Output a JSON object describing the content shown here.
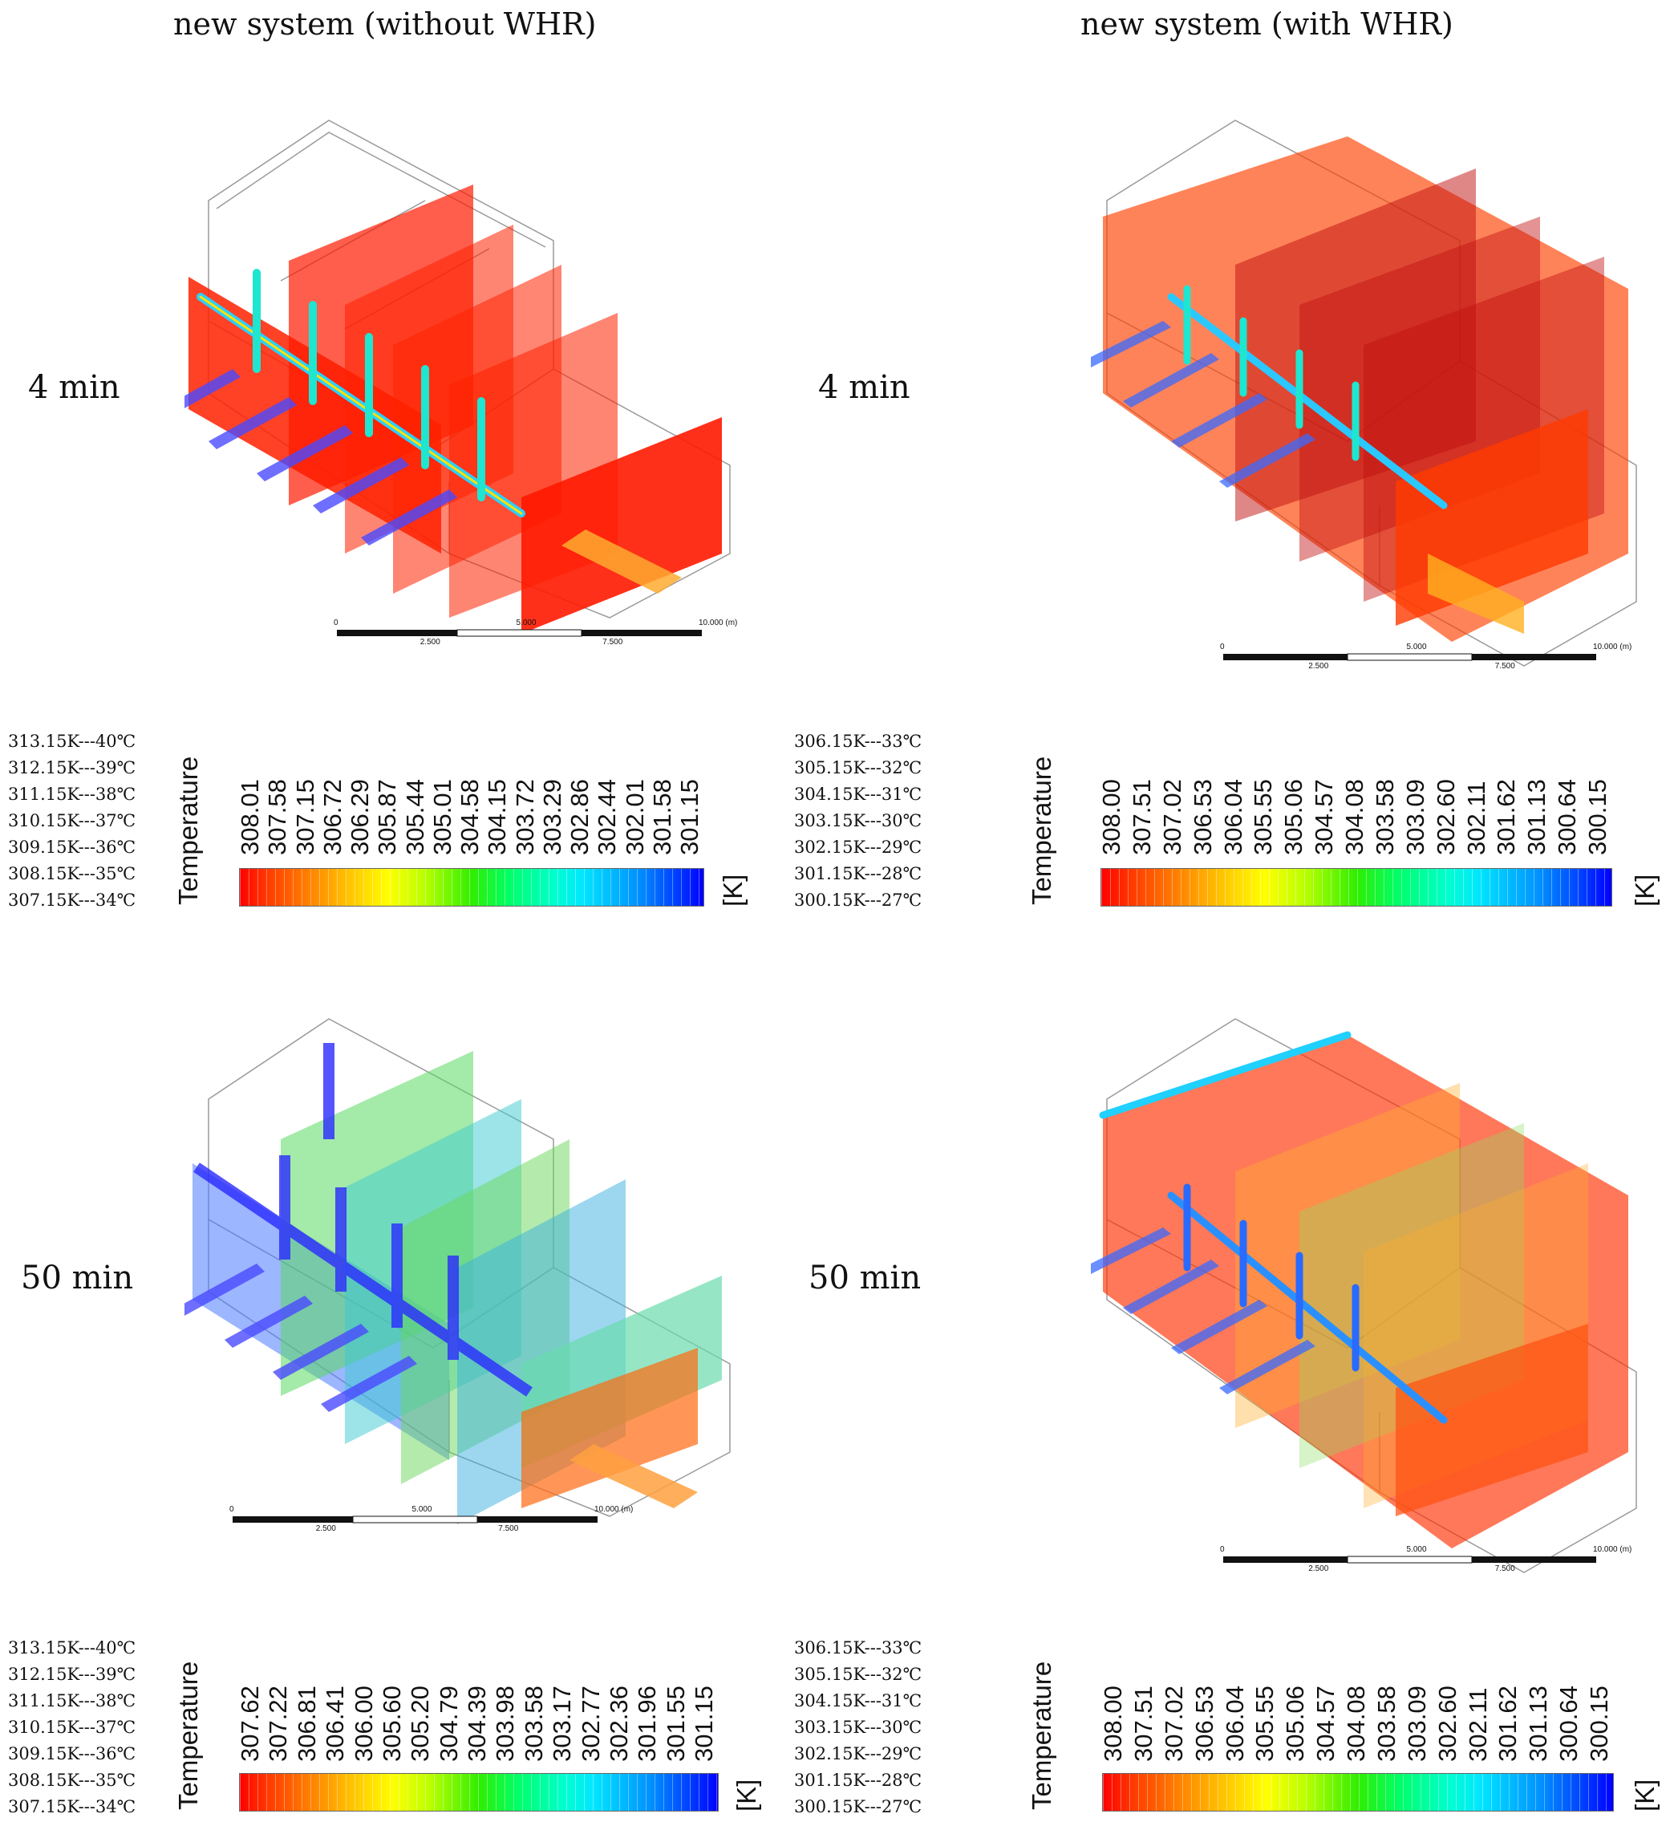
{
  "headers": {
    "left": "new system (without WHR)",
    "right": "new system (with WHR)"
  },
  "rows": [
    {
      "left_time": "4 min",
      "right_time": "4 min"
    },
    {
      "left_time": "50 min",
      "right_time": "50 min"
    }
  ],
  "scale_bar": {
    "top": [
      "0",
      "5.000",
      "10.000 (m)"
    ],
    "bottom": [
      "2.500",
      "7.500"
    ]
  },
  "conversions": {
    "left": [
      "313.15K---40℃",
      "312.15K---39℃",
      "311.15K---38℃",
      "310.15K---37℃",
      "309.15K---36℃",
      "308.15K---35℃",
      "307.15K---34℃"
    ],
    "right": [
      "306.15K---33℃",
      "305.15K---32℃",
      "304.15K---31℃",
      "303.15K---30℃",
      "302.15K---29℃",
      "301.15K---28℃",
      "300.15K---27℃"
    ]
  },
  "legends": {
    "title": "Temperature",
    "unit": "[K]",
    "left_4min": [
      "308.01",
      "307.58",
      "307.15",
      "306.72",
      "306.29",
      "305.87",
      "305.44",
      "305.01",
      "304.58",
      "304.15",
      "303.72",
      "303.29",
      "302.86",
      "302.44",
      "302.01",
      "301.58",
      "301.15"
    ],
    "right_4min": [
      "308.00",
      "307.51",
      "307.02",
      "306.53",
      "306.04",
      "305.55",
      "305.06",
      "304.57",
      "304.08",
      "303.58",
      "303.09",
      "302.60",
      "302.11",
      "301.62",
      "301.13",
      "300.64",
      "300.15"
    ],
    "left_50min": [
      "307.62",
      "307.22",
      "306.81",
      "306.41",
      "306.00",
      "305.60",
      "305.20",
      "304.79",
      "304.39",
      "303.98",
      "303.58",
      "303.17",
      "302.77",
      "302.36",
      "301.96",
      "301.55",
      "301.15"
    ],
    "right_50min": [
      "308.00",
      "307.51",
      "307.02",
      "306.53",
      "306.04",
      "305.55",
      "305.06",
      "304.57",
      "304.08",
      "303.58",
      "303.09",
      "302.60",
      "302.11",
      "301.62",
      "301.13",
      "300.64",
      "300.15"
    ]
  },
  "colors": {
    "hot": "#ff1a00",
    "orange": "#ff6a00",
    "cold": "#2a2aff",
    "green": "#7ad84a",
    "wire": "#9a9a9a"
  }
}
